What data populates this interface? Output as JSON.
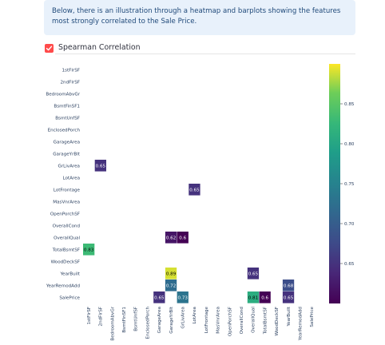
{
  "info": {
    "text": "Below, there is an illustration through a heatmap and barplots showing the features most strongly correlated to the Sale Price."
  },
  "checkbox": {
    "label": "Spearman Correlation",
    "checked": true,
    "accent_color": "#ff4b4b"
  },
  "chart_data": {
    "type": "heatmap",
    "title": "",
    "rows": [
      "1stFlrSF",
      "2ndFlrSF",
      "BedroomAbvGr",
      "BsmtFinSF1",
      "BsmtUnfSF",
      "EnclosedPorch",
      "GarageArea",
      "GarageYrBlt",
      "GrLivArea",
      "LotArea",
      "LotFrontage",
      "MasVnrArea",
      "OpenPorchSF",
      "OverallCond",
      "OverallQual",
      "TotalBsmtSF",
      "WoodDeckSF",
      "YearBuilt",
      "YearRemodAdd",
      "SalePrice"
    ],
    "columns": [
      "1stFlrSF",
      "2ndFlrSF",
      "BedroomAbvGr",
      "BsmtFinSF1",
      "BsmtUnfSF",
      "EnclosedPorch",
      "GarageArea",
      "GarageYrBlt",
      "GrLivArea",
      "LotArea",
      "LotFrontage",
      "MasVnrArea",
      "OpenPorchSF",
      "OverallCond",
      "OverallQual",
      "TotalBsmtSF",
      "WoodDeckSF",
      "YearBuilt",
      "YearRemodAdd",
      "SalePrice"
    ],
    "cells": [
      {
        "row": "GrLivArea",
        "col": "2ndFlrSF",
        "value": 0.65
      },
      {
        "row": "LotFrontage",
        "col": "LotArea",
        "value": 0.65
      },
      {
        "row": "OverallQual",
        "col": "GarageYrBlt",
        "value": 0.62
      },
      {
        "row": "OverallQual",
        "col": "GrLivArea",
        "value": 0.6
      },
      {
        "row": "TotalBsmtSF",
        "col": "1stFlrSF",
        "value": 0.83
      },
      {
        "row": "YearBuilt",
        "col": "GarageYrBlt",
        "value": 0.89
      },
      {
        "row": "YearBuilt",
        "col": "OverallQual",
        "value": 0.65
      },
      {
        "row": "YearRemodAdd",
        "col": "GarageYrBlt",
        "value": 0.72
      },
      {
        "row": "YearRemodAdd",
        "col": "YearBuilt",
        "value": 0.68
      },
      {
        "row": "SalePrice",
        "col": "GarageArea",
        "value": 0.65
      },
      {
        "row": "SalePrice",
        "col": "GrLivArea",
        "value": 0.73
      },
      {
        "row": "SalePrice",
        "col": "OverallQual",
        "value": 0.81
      },
      {
        "row": "SalePrice",
        "col": "TotalBsmtSF",
        "value": 0.6
      },
      {
        "row": "SalePrice",
        "col": "YearBuilt",
        "value": 0.65
      }
    ],
    "colorscale": {
      "name": "viridis",
      "range": [
        0.6,
        0.9
      ],
      "ticks": [
        "0.85",
        "0.80",
        "0.75",
        "0.70",
        "0.65"
      ],
      "tick_values": [
        0.85,
        0.8,
        0.75,
        0.7,
        0.65
      ]
    },
    "grid": false,
    "legend": "colorbar-right"
  }
}
